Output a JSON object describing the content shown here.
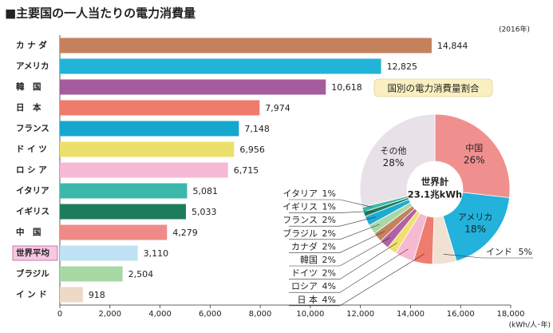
{
  "chart_data": [
    {
      "type": "hbar",
      "title": "■主要国の一人当たりの電力消費量",
      "note": "(2016年)",
      "x_label": "(kWh/人･年)",
      "categories": [
        "カ ナ ダ",
        "アメリカ",
        "韓　国",
        "日　本",
        "フランス",
        "ド イ ツ",
        "ロ シ ア",
        "イタリア",
        "イギリス",
        "中　国",
        "世界平均",
        "ブラジル",
        "イ ン ド"
      ],
      "values": [
        14844,
        12825,
        10618,
        7974,
        7148,
        6956,
        6715,
        5081,
        5033,
        4279,
        3110,
        2504,
        918
      ],
      "value_labels": [
        "14,844",
        "12,825",
        "10,618",
        "7,974",
        "7,148",
        "6,956",
        "6,715",
        "5,081",
        "5,033",
        "4,279",
        "3,110",
        "2,504",
        "918"
      ],
      "colors": [
        "#c4825c",
        "#22b4d8",
        "#a45c9c",
        "#ee7b6c",
        "#16a7cf",
        "#ece06c",
        "#f6bad6",
        "#3cb8aa",
        "#1c7c5c",
        "#f08a88",
        "#bfe2f4",
        "#a8d8a4",
        "#eed9c6"
      ],
      "xlim": [
        0,
        18000
      ],
      "xticks": [
        0,
        {
          "value": 2000,
          "label": "2,000"
        },
        {
          "value": 4000,
          "label": "4,000"
        },
        {
          "value": 6000,
          "label": "6,000"
        },
        {
          "value": 8000,
          "label": "8,000"
        },
        {
          "value": 10000,
          "label": "10,000"
        },
        {
          "value": 12000,
          "label": "12,000"
        },
        {
          "value": 14000,
          "label": "14,000"
        },
        {
          "value": 16000,
          "label": "16,000"
        },
        {
          "value": 18000,
          "label": "18,000"
        }
      ]
    },
    {
      "type": "donut",
      "title": "国別の電力消費量割合",
      "center_text": [
        "世界計",
        "23.1兆kWh"
      ],
      "categories": [
        "中国",
        "アメリカ",
        "インド",
        "日 本",
        "ロシア",
        "ドイツ",
        "韓国",
        "カナダ",
        "ブラジル",
        "フランス",
        "イギリス",
        "イタリア",
        "その他"
      ],
      "values": [
        26,
        18,
        5,
        4,
        4,
        2,
        2,
        2,
        2,
        2,
        1,
        1,
        28
      ],
      "value_labels": [
        "26%",
        "18%",
        "5%",
        "4%",
        "4%",
        "2%",
        "2%",
        "2%",
        "2%",
        "2%",
        "1%",
        "1%",
        "28%"
      ],
      "colors": [
        "#f0908e",
        "#22b2dc",
        "#f1e1d2",
        "#ef7c6e",
        "#f6b9d2",
        "#efe070",
        "#b261a2",
        "#c4825c",
        "#a8d8a8",
        "#1faad2",
        "#1c7c5c",
        "#3cb8aa",
        "#e8e2e8"
      ]
    }
  ]
}
